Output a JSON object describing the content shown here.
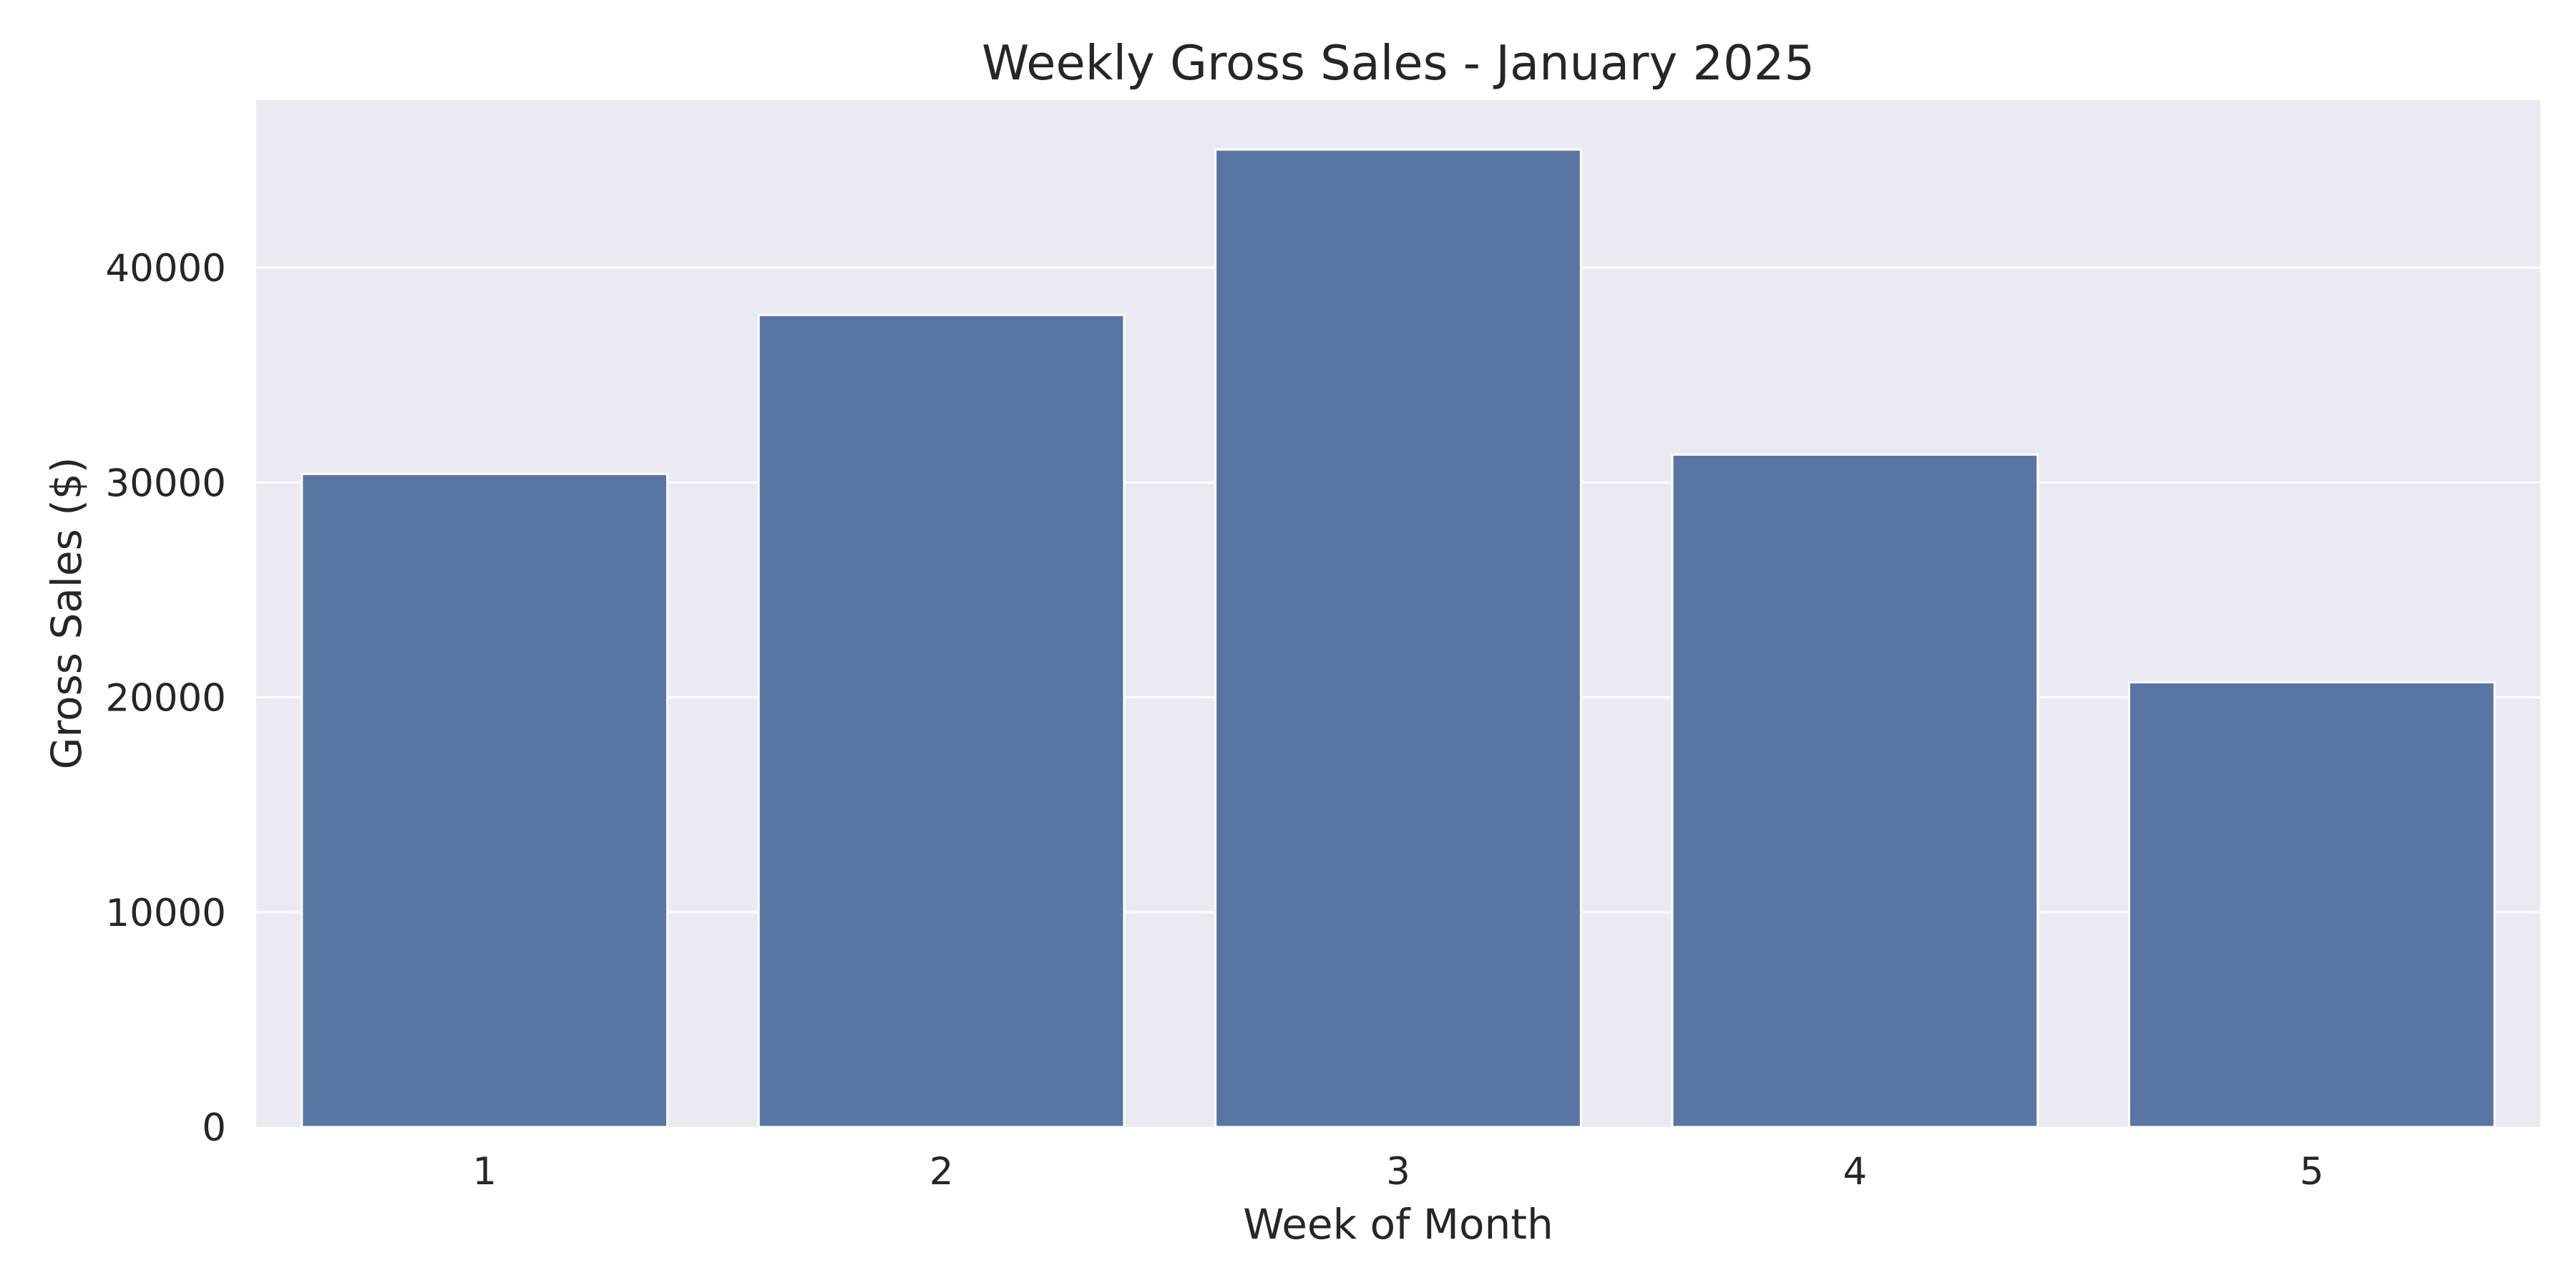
{
  "chart_data": {
    "type": "bar",
    "title": "Weekly Gross Sales - January 2025",
    "xlabel": "Week of Month",
    "ylabel": "Gross Sales ($)",
    "categories": [
      "1",
      "2",
      "3",
      "4",
      "5"
    ],
    "values": [
      30400,
      37800,
      45500,
      31300,
      20700
    ],
    "ylim": [
      0,
      47800
    ],
    "yticks": [
      0,
      10000,
      20000,
      30000,
      40000
    ],
    "grid": true,
    "colors": {
      "bar": "#5975a4",
      "plot_background": "#eaeaf2",
      "grid": "#ffffff",
      "text": "#262626"
    }
  }
}
